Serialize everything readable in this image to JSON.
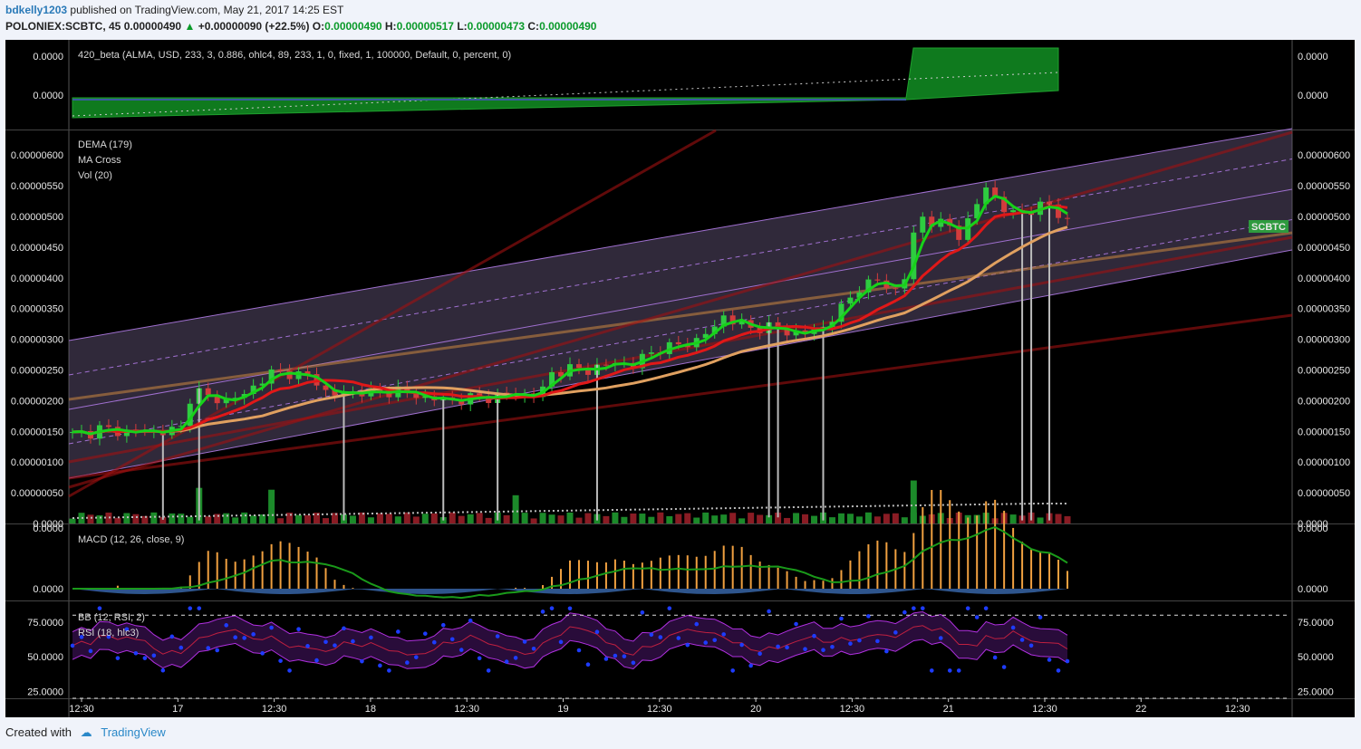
{
  "header": {
    "user": "bdkelly1203",
    "published": "published on TradingView.com, May 21, 2017 14:25 EST",
    "symbol": "POLONIEX:SCBTC, 45",
    "price": "0.00000490",
    "change": "+0.00000090 (+22.5%)",
    "o_label": "O:",
    "o": "0.00000490",
    "h_label": "H:",
    "h": "0.00000517",
    "l_label": "L:",
    "l": "0.00000473",
    "c_label": "C:",
    "c": "0.00000490"
  },
  "footer": {
    "created": "Created with",
    "brand": "TradingView"
  },
  "colors": {
    "background": "#000000",
    "up_candle": "#2ecc40",
    "down_candle": "#d23c3c",
    "fast_ma": "#17d21a",
    "slow_ma": "#e01818",
    "dema": "#e0a060",
    "channel": "#a070d0",
    "macd_line": "#1a9a1a",
    "macd_hist": "#f0a040",
    "rsi_dot": "#1e3cff"
  },
  "chart_data": [
    {
      "type": "area",
      "indicator_label": "420_beta (ALMA, USD, 233, 3, 0.886, ohlc4, 89, 233, 1, 0, fixed, 1, 100000, Default, 0, percent, 0)",
      "y_tick_labels": [
        "0.0000",
        "0.0000"
      ]
    },
    {
      "type": "candlestick",
      "symbol_tag": "SCBTC",
      "legend": [
        "DEMA (179)",
        "MA Cross",
        "Vol (20)"
      ],
      "y_tick_labels": [
        "0.00000600",
        "0.00000550",
        "0.00000500",
        "0.00000450",
        "0.00000400",
        "0.00000350",
        "0.00000300",
        "0.00000250",
        "0.00000200",
        "0.00000150",
        "0.00000100",
        "0.00000050",
        "0.0000"
      ],
      "ylim": [
        0,
        6.4e-06
      ],
      "x_tick_labels": [
        "12:30",
        "17",
        "12:30",
        "18",
        "12:30",
        "19",
        "12:30",
        "20",
        "12:30",
        "21",
        "12:30",
        "22",
        "12:30"
      ],
      "close_path": [
        [
          0,
          1.45e-06
        ],
        [
          2,
          1.48e-06
        ],
        [
          3,
          1.55e-06
        ],
        [
          5,
          1.5e-06
        ],
        [
          8,
          1.5e-06
        ],
        [
          10,
          1.5e-06
        ],
        [
          12,
          1.55e-06
        ],
        [
          13,
          2.05e-06
        ],
        [
          14,
          2.15e-06
        ],
        [
          15,
          2.05e-06
        ],
        [
          17,
          2e-06
        ],
        [
          19,
          2.1e-06
        ],
        [
          21,
          2.35e-06
        ],
        [
          22,
          2.45e-06
        ],
        [
          24,
          2.45e-06
        ],
        [
          26,
          2.4e-06
        ],
        [
          27,
          2.3e-06
        ],
        [
          28,
          2.15e-06
        ],
        [
          29,
          2.1e-06
        ],
        [
          30,
          2.12e-06
        ],
        [
          32,
          2.15e-06
        ],
        [
          34,
          2.12e-06
        ],
        [
          36,
          2.18e-06
        ],
        [
          37,
          2.12e-06
        ],
        [
          39,
          2.05e-06
        ],
        [
          42,
          2e-06
        ],
        [
          44,
          2.05e-06
        ],
        [
          46,
          2.05e-06
        ],
        [
          47,
          2.08e-06
        ],
        [
          49,
          2.1e-06
        ],
        [
          51,
          2.1e-06
        ],
        [
          52,
          2.18e-06
        ],
        [
          53,
          2.45e-06
        ],
        [
          55,
          2.52e-06
        ],
        [
          57,
          2.5e-06
        ],
        [
          60,
          2.62e-06
        ],
        [
          62,
          2.58e-06
        ],
        [
          63,
          2.7e-06
        ],
        [
          65,
          2.85e-06
        ],
        [
          67,
          2.9e-06
        ],
        [
          69,
          2.98e-06
        ],
        [
          71,
          3.2e-06
        ],
        [
          72,
          3.38e-06
        ],
        [
          73,
          3.3e-06
        ],
        [
          75,
          3.18e-06
        ],
        [
          77,
          3.2e-06
        ],
        [
          79,
          3.12e-06
        ],
        [
          81,
          3.1e-06
        ],
        [
          83,
          3.2e-06
        ],
        [
          85,
          3.5e-06
        ],
        [
          87,
          3.85e-06
        ],
        [
          89,
          3.95e-06
        ],
        [
          91,
          3.8e-06
        ],
        [
          92,
          4e-06
        ],
        [
          93,
          4.7e-06
        ],
        [
          94,
          5e-06
        ],
        [
          95,
          4.9e-06
        ],
        [
          97,
          4.85e-06
        ],
        [
          98,
          4.7e-06
        ],
        [
          99,
          4.9e-06
        ],
        [
          101,
          5.5e-06
        ],
        [
          103,
          5.1e-06
        ],
        [
          104,
          5.05e-06
        ],
        [
          106,
          5.1e-06
        ],
        [
          108,
          5.2e-06
        ],
        [
          109,
          5.05e-06
        ],
        [
          110,
          4.9e-06
        ]
      ],
      "volume_spikes": [
        [
          14,
          5.8e-07
        ],
        [
          22,
          5.5e-07
        ],
        [
          49,
          4.6e-07
        ],
        [
          93,
          7e-07
        ]
      ]
    },
    {
      "type": "bar",
      "indicator_label": "MACD (12, 26, close, 9)",
      "y_tick_labels": [
        "0.0000",
        "0.0000"
      ]
    },
    {
      "type": "line",
      "indicator_labels": [
        "BB (12, RSI, 2)",
        "RSI (18, hlc3)"
      ],
      "y_tick_labels": [
        "75.0000",
        "50.0000",
        "25.0000"
      ],
      "ylim": [
        20,
        90
      ]
    }
  ]
}
